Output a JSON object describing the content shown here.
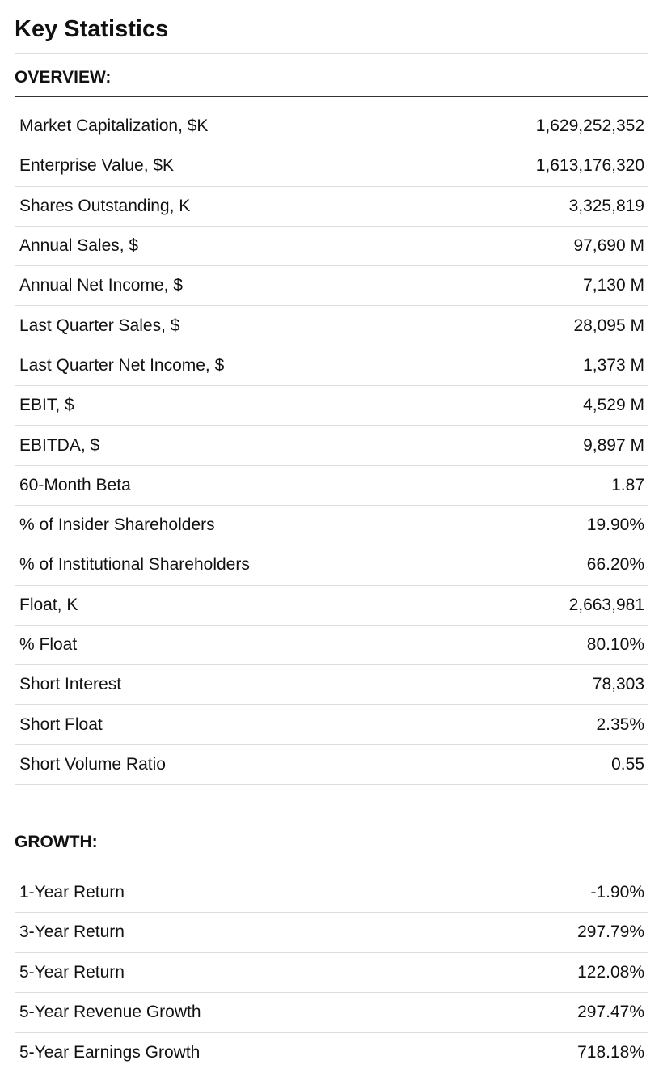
{
  "title": "Key Statistics",
  "sections": [
    {
      "heading": "OVERVIEW:",
      "rows": [
        {
          "label": "Market Capitalization, $K",
          "value": "1,629,252,352"
        },
        {
          "label": "Enterprise Value, $K",
          "value": "1,613,176,320"
        },
        {
          "label": "Shares Outstanding, K",
          "value": "3,325,819"
        },
        {
          "label": "Annual Sales, $",
          "value": "97,690 M"
        },
        {
          "label": "Annual Net Income, $",
          "value": "7,130 M"
        },
        {
          "label": "Last Quarter Sales, $",
          "value": "28,095 M"
        },
        {
          "label": "Last Quarter Net Income, $",
          "value": "1,373 M"
        },
        {
          "label": "EBIT, $",
          "value": "4,529 M"
        },
        {
          "label": "EBITDA, $",
          "value": "9,897 M"
        },
        {
          "label": "60-Month Beta",
          "value": "1.87"
        },
        {
          "label": "% of Insider Shareholders",
          "value": "19.90%"
        },
        {
          "label": "% of Institutional Shareholders",
          "value": "66.20%"
        },
        {
          "label": "Float, K",
          "value": "2,663,981"
        },
        {
          "label": "% Float",
          "value": "80.10%"
        },
        {
          "label": "Short Interest",
          "value": "78,303"
        },
        {
          "label": "Short Float",
          "value": "2.35%"
        },
        {
          "label": "Short Volume Ratio",
          "value": "0.55"
        }
      ]
    },
    {
      "heading": "GROWTH:",
      "rows": [
        {
          "label": "1-Year Return",
          "value": "-1.90%"
        },
        {
          "label": "3-Year Return",
          "value": "297.79%"
        },
        {
          "label": "5-Year Return",
          "value": "122.08%"
        },
        {
          "label": "5-Year Revenue Growth",
          "value": "297.47%"
        },
        {
          "label": "5-Year Earnings Growth",
          "value": "718.18%"
        }
      ]
    }
  ]
}
